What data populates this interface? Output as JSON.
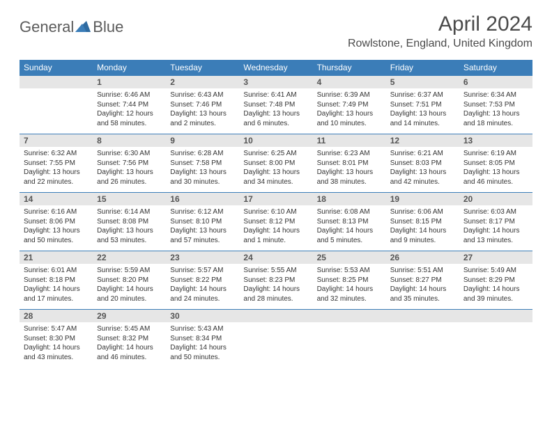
{
  "logo": {
    "word1": "General",
    "word2": "Blue"
  },
  "title": "April 2024",
  "location": "Rowlstone, England, United Kingdom",
  "colors": {
    "header_bg": "#3b7db8",
    "header_text": "#ffffff",
    "daynum_bg": "#e6e6e6",
    "text": "#333333",
    "rule": "#3b7db8"
  },
  "day_names": [
    "Sunday",
    "Monday",
    "Tuesday",
    "Wednesday",
    "Thursday",
    "Friday",
    "Saturday"
  ],
  "weeks": [
    [
      null,
      {
        "n": "1",
        "sr": "Sunrise: 6:46 AM",
        "ss": "Sunset: 7:44 PM",
        "dl1": "Daylight: 12 hours",
        "dl2": "and 58 minutes."
      },
      {
        "n": "2",
        "sr": "Sunrise: 6:43 AM",
        "ss": "Sunset: 7:46 PM",
        "dl1": "Daylight: 13 hours",
        "dl2": "and 2 minutes."
      },
      {
        "n": "3",
        "sr": "Sunrise: 6:41 AM",
        "ss": "Sunset: 7:48 PM",
        "dl1": "Daylight: 13 hours",
        "dl2": "and 6 minutes."
      },
      {
        "n": "4",
        "sr": "Sunrise: 6:39 AM",
        "ss": "Sunset: 7:49 PM",
        "dl1": "Daylight: 13 hours",
        "dl2": "and 10 minutes."
      },
      {
        "n": "5",
        "sr": "Sunrise: 6:37 AM",
        "ss": "Sunset: 7:51 PM",
        "dl1": "Daylight: 13 hours",
        "dl2": "and 14 minutes."
      },
      {
        "n": "6",
        "sr": "Sunrise: 6:34 AM",
        "ss": "Sunset: 7:53 PM",
        "dl1": "Daylight: 13 hours",
        "dl2": "and 18 minutes."
      }
    ],
    [
      {
        "n": "7",
        "sr": "Sunrise: 6:32 AM",
        "ss": "Sunset: 7:55 PM",
        "dl1": "Daylight: 13 hours",
        "dl2": "and 22 minutes."
      },
      {
        "n": "8",
        "sr": "Sunrise: 6:30 AM",
        "ss": "Sunset: 7:56 PM",
        "dl1": "Daylight: 13 hours",
        "dl2": "and 26 minutes."
      },
      {
        "n": "9",
        "sr": "Sunrise: 6:28 AM",
        "ss": "Sunset: 7:58 PM",
        "dl1": "Daylight: 13 hours",
        "dl2": "and 30 minutes."
      },
      {
        "n": "10",
        "sr": "Sunrise: 6:25 AM",
        "ss": "Sunset: 8:00 PM",
        "dl1": "Daylight: 13 hours",
        "dl2": "and 34 minutes."
      },
      {
        "n": "11",
        "sr": "Sunrise: 6:23 AM",
        "ss": "Sunset: 8:01 PM",
        "dl1": "Daylight: 13 hours",
        "dl2": "and 38 minutes."
      },
      {
        "n": "12",
        "sr": "Sunrise: 6:21 AM",
        "ss": "Sunset: 8:03 PM",
        "dl1": "Daylight: 13 hours",
        "dl2": "and 42 minutes."
      },
      {
        "n": "13",
        "sr": "Sunrise: 6:19 AM",
        "ss": "Sunset: 8:05 PM",
        "dl1": "Daylight: 13 hours",
        "dl2": "and 46 minutes."
      }
    ],
    [
      {
        "n": "14",
        "sr": "Sunrise: 6:16 AM",
        "ss": "Sunset: 8:06 PM",
        "dl1": "Daylight: 13 hours",
        "dl2": "and 50 minutes."
      },
      {
        "n": "15",
        "sr": "Sunrise: 6:14 AM",
        "ss": "Sunset: 8:08 PM",
        "dl1": "Daylight: 13 hours",
        "dl2": "and 53 minutes."
      },
      {
        "n": "16",
        "sr": "Sunrise: 6:12 AM",
        "ss": "Sunset: 8:10 PM",
        "dl1": "Daylight: 13 hours",
        "dl2": "and 57 minutes."
      },
      {
        "n": "17",
        "sr": "Sunrise: 6:10 AM",
        "ss": "Sunset: 8:12 PM",
        "dl1": "Daylight: 14 hours",
        "dl2": "and 1 minute."
      },
      {
        "n": "18",
        "sr": "Sunrise: 6:08 AM",
        "ss": "Sunset: 8:13 PM",
        "dl1": "Daylight: 14 hours",
        "dl2": "and 5 minutes."
      },
      {
        "n": "19",
        "sr": "Sunrise: 6:06 AM",
        "ss": "Sunset: 8:15 PM",
        "dl1": "Daylight: 14 hours",
        "dl2": "and 9 minutes."
      },
      {
        "n": "20",
        "sr": "Sunrise: 6:03 AM",
        "ss": "Sunset: 8:17 PM",
        "dl1": "Daylight: 14 hours",
        "dl2": "and 13 minutes."
      }
    ],
    [
      {
        "n": "21",
        "sr": "Sunrise: 6:01 AM",
        "ss": "Sunset: 8:18 PM",
        "dl1": "Daylight: 14 hours",
        "dl2": "and 17 minutes."
      },
      {
        "n": "22",
        "sr": "Sunrise: 5:59 AM",
        "ss": "Sunset: 8:20 PM",
        "dl1": "Daylight: 14 hours",
        "dl2": "and 20 minutes."
      },
      {
        "n": "23",
        "sr": "Sunrise: 5:57 AM",
        "ss": "Sunset: 8:22 PM",
        "dl1": "Daylight: 14 hours",
        "dl2": "and 24 minutes."
      },
      {
        "n": "24",
        "sr": "Sunrise: 5:55 AM",
        "ss": "Sunset: 8:23 PM",
        "dl1": "Daylight: 14 hours",
        "dl2": "and 28 minutes."
      },
      {
        "n": "25",
        "sr": "Sunrise: 5:53 AM",
        "ss": "Sunset: 8:25 PM",
        "dl1": "Daylight: 14 hours",
        "dl2": "and 32 minutes."
      },
      {
        "n": "26",
        "sr": "Sunrise: 5:51 AM",
        "ss": "Sunset: 8:27 PM",
        "dl1": "Daylight: 14 hours",
        "dl2": "and 35 minutes."
      },
      {
        "n": "27",
        "sr": "Sunrise: 5:49 AM",
        "ss": "Sunset: 8:29 PM",
        "dl1": "Daylight: 14 hours",
        "dl2": "and 39 minutes."
      }
    ],
    [
      {
        "n": "28",
        "sr": "Sunrise: 5:47 AM",
        "ss": "Sunset: 8:30 PM",
        "dl1": "Daylight: 14 hours",
        "dl2": "and 43 minutes."
      },
      {
        "n": "29",
        "sr": "Sunrise: 5:45 AM",
        "ss": "Sunset: 8:32 PM",
        "dl1": "Daylight: 14 hours",
        "dl2": "and 46 minutes."
      },
      {
        "n": "30",
        "sr": "Sunrise: 5:43 AM",
        "ss": "Sunset: 8:34 PM",
        "dl1": "Daylight: 14 hours",
        "dl2": "and 50 minutes."
      },
      null,
      null,
      null,
      null
    ]
  ]
}
